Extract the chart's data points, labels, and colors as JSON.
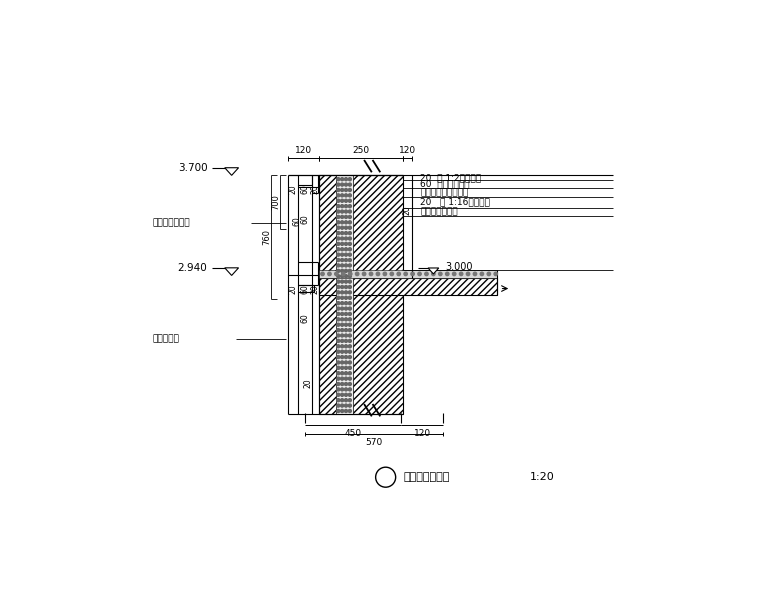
{
  "bg_color": "#ffffff",
  "elevation_top": "3.700",
  "elevation_mid": "2.940",
  "label_left1": "乳白色外墙面砖",
  "label_left2": "黑白色涂料",
  "label_right1": "20  厚 1:2水泥砂浆",
  "label_right2": "60  厚护坡混凝土",
  "label_right3": "现浇钢筋混凝土楼板",
  "label_right4": "20   厚 1:16混合砂浆",
  "label_right5": "刷白用白色涂料",
  "label_right6": "3.000",
  "title": "山墙一层顶线角",
  "scale": "1:20",
  "dim_top_120L": "120",
  "dim_top_250": "250",
  "dim_top_120R": "120",
  "dim_700": "700",
  "dim_760": "760",
  "dim_bot_450": "450",
  "dim_bot_120": "120",
  "dim_bot_570": "570",
  "dim_20": "20",
  "dim_60": "60"
}
